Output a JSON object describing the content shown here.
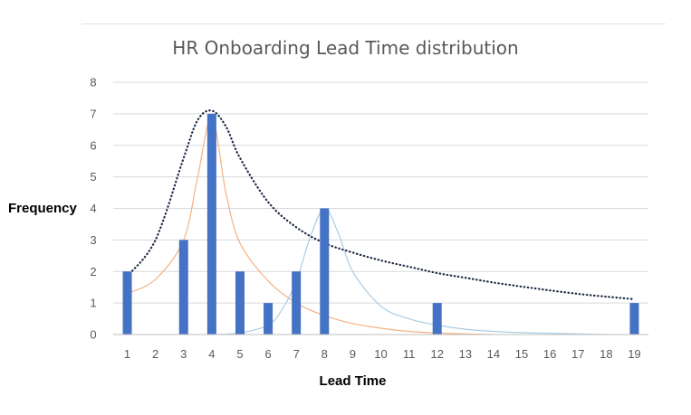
{
  "chart_data": {
    "type": "bar",
    "title": "HR Onboarding Lead Time distribution",
    "xlabel": "Lead Time",
    "ylabel": "Frequency",
    "categories": [
      "1",
      "2",
      "3",
      "4",
      "5",
      "6",
      "7",
      "8",
      "9",
      "10",
      "11",
      "12",
      "13",
      "14",
      "15",
      "16",
      "17",
      "18",
      "19"
    ],
    "values": [
      2,
      0,
      3,
      7,
      2,
      1,
      2,
      4,
      0,
      0,
      0,
      1,
      0,
      0,
      0,
      0,
      0,
      0,
      1
    ],
    "ylim": [
      0,
      8
    ],
    "yticks": [
      "0",
      "1",
      "2",
      "3",
      "4",
      "5",
      "6",
      "7",
      "8"
    ],
    "grid": true,
    "legend": "none",
    "bar_color": "#4472c4",
    "trend_curves": [
      {
        "style": "dotted",
        "color": "#1f2a44",
        "points": [
          [
            1,
            1.85
          ],
          [
            2,
            3.0
          ],
          [
            3,
            5.6
          ],
          [
            3.5,
            6.8
          ],
          [
            4,
            7.1
          ],
          [
            4.5,
            6.6
          ],
          [
            5,
            5.6
          ],
          [
            6,
            4.2
          ],
          [
            7,
            3.4
          ],
          [
            8,
            2.9
          ],
          [
            9,
            2.6
          ],
          [
            10,
            2.35
          ],
          [
            11,
            2.15
          ],
          [
            12,
            1.95
          ],
          [
            13,
            1.8
          ],
          [
            14,
            1.65
          ],
          [
            15,
            1.52
          ],
          [
            16,
            1.4
          ],
          [
            17,
            1.29
          ],
          [
            18,
            1.2
          ],
          [
            19,
            1.12
          ]
        ]
      },
      {
        "style": "solid",
        "color": "#f4b183",
        "points": [
          [
            1,
            1.3
          ],
          [
            2,
            1.75
          ],
          [
            3,
            3.0
          ],
          [
            3.5,
            5.0
          ],
          [
            4,
            6.9
          ],
          [
            4.5,
            4.5
          ],
          [
            5,
            2.9
          ],
          [
            6,
            1.7
          ],
          [
            7,
            1.0
          ],
          [
            8,
            0.6
          ],
          [
            9,
            0.35
          ],
          [
            10,
            0.2
          ],
          [
            11,
            0.1
          ],
          [
            12,
            0.05
          ],
          [
            13,
            0.02
          ],
          [
            14,
            0.0
          ]
        ]
      },
      {
        "style": "solid",
        "color": "#a9cce3",
        "points": [
          [
            4,
            0.0
          ],
          [
            5,
            0.05
          ],
          [
            6,
            0.3
          ],
          [
            6.5,
            0.8
          ],
          [
            7,
            1.7
          ],
          [
            7.5,
            3.1
          ],
          [
            8,
            4.0
          ],
          [
            8.5,
            3.2
          ],
          [
            9,
            2.0
          ],
          [
            10,
            0.9
          ],
          [
            11,
            0.5
          ],
          [
            12,
            0.3
          ],
          [
            13,
            0.17
          ],
          [
            14,
            0.1
          ],
          [
            15,
            0.06
          ],
          [
            16,
            0.04
          ],
          [
            17,
            0.02
          ],
          [
            18,
            0.0
          ]
        ]
      }
    ]
  }
}
